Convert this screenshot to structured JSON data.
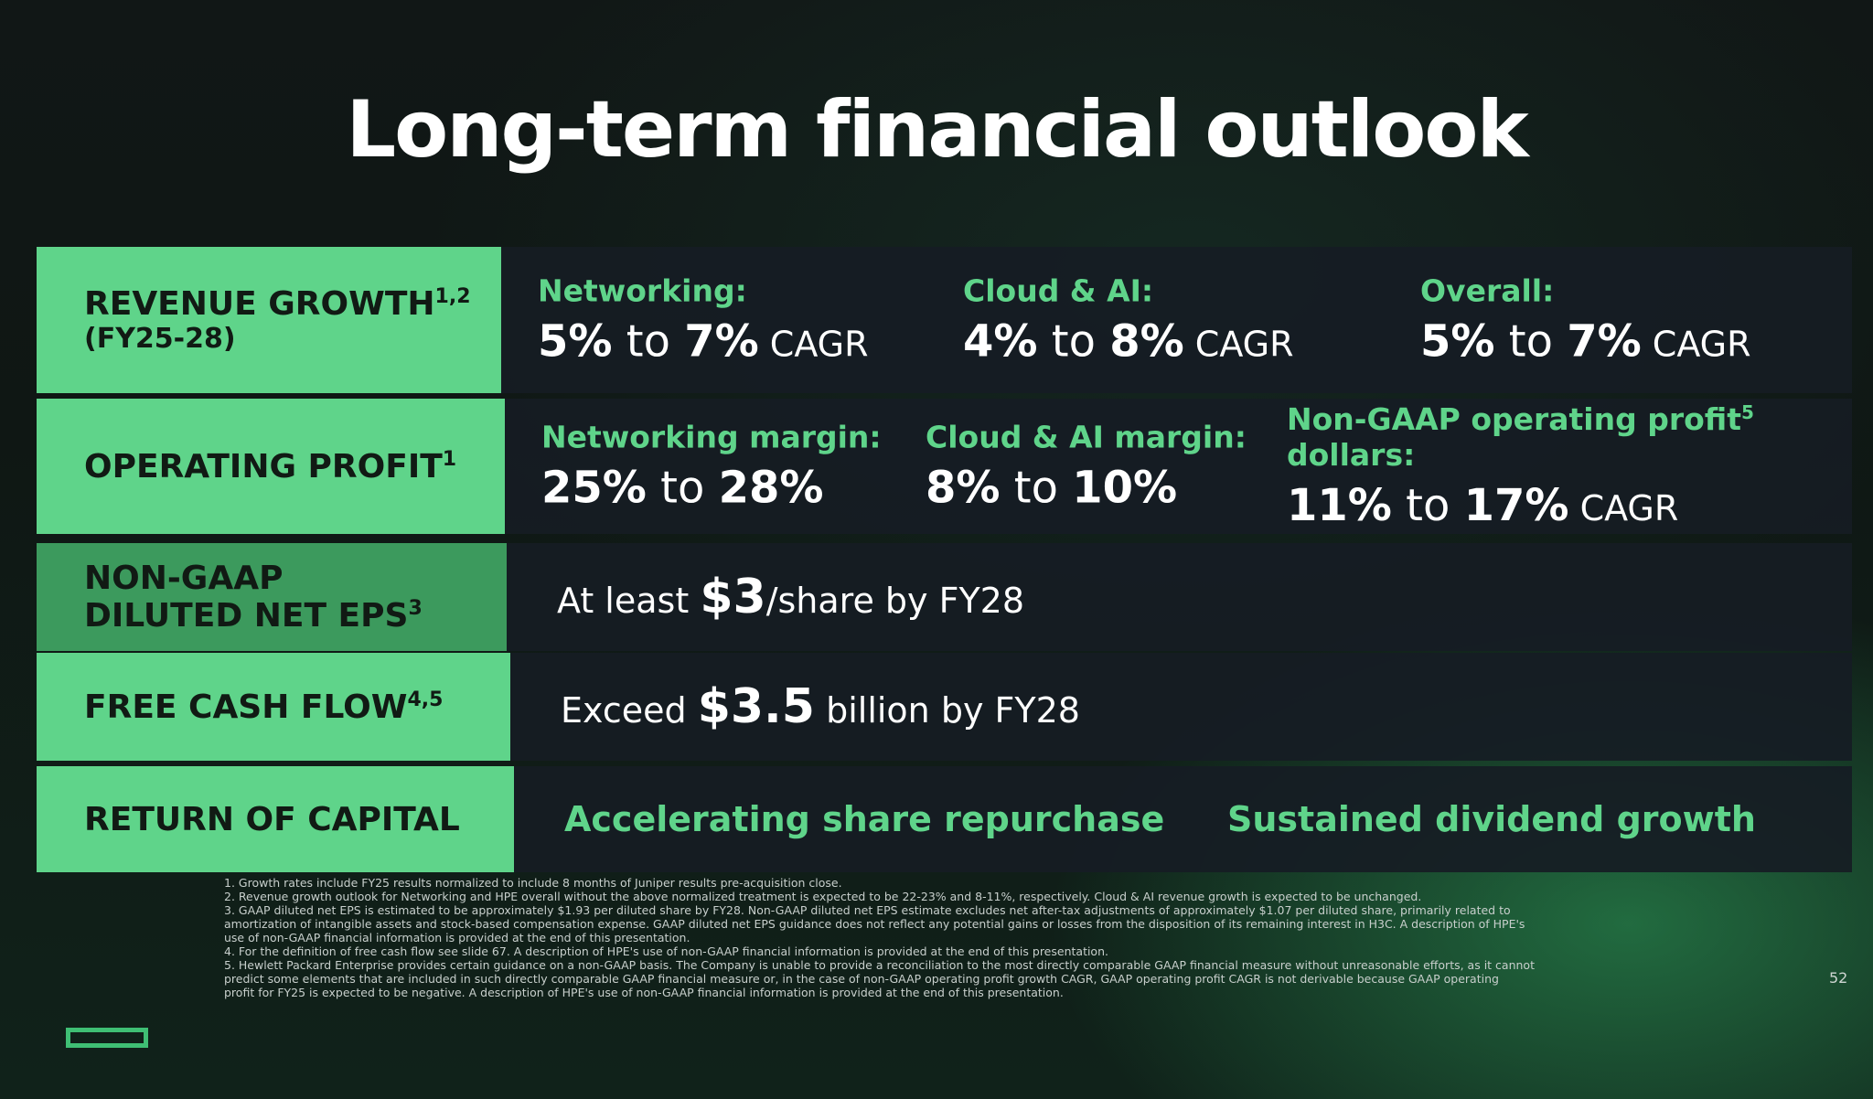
{
  "title": "Long-term financial outlook",
  "rows": {
    "revenue": {
      "label": "REVENUE GROWTH",
      "label_sup": "1,2",
      "label_sub": "(FY25-28)",
      "cols": [
        {
          "head": "Networking:",
          "low": "5%",
          "to": " to ",
          "high": "7%",
          "suffix": " CAGR"
        },
        {
          "head": "Cloud & AI:",
          "low": "4%",
          "to": " to ",
          "high": "8%",
          "suffix": " CAGR"
        },
        {
          "head": "Overall:",
          "low": "5%",
          "to": " to ",
          "high": "7%",
          "suffix": " CAGR"
        }
      ]
    },
    "operating": {
      "label": "OPERATING PROFIT",
      "label_sup": "1",
      "cols": [
        {
          "head": "Networking margin:",
          "low": "25%",
          "to": " to ",
          "high": "28%",
          "suffix": ""
        },
        {
          "head": "Cloud & AI margin:",
          "low": "8%",
          "to": " to ",
          "high": "10%",
          "suffix": ""
        },
        {
          "head": "Non-GAAP operating profit",
          "head_sup": "5",
          "head_tail": " dollars:",
          "low": "11%",
          "to": " to ",
          "high": "17%",
          "suffix": " CAGR"
        }
      ]
    },
    "eps": {
      "label_line1": "NON-GAAP",
      "label_line2": "DILUTED NET EPS",
      "label_sup": "3",
      "prefix": "At least ",
      "value": "$3",
      "suffix": "/share by FY28"
    },
    "fcf": {
      "label": "FREE CASH FLOW",
      "label_sup": "4,5",
      "prefix": "Exceed ",
      "value": "$3.5",
      "suffix": " billion by FY28"
    },
    "capital": {
      "label": "RETURN OF CAPITAL",
      "item1": "Accelerating share repurchase",
      "item2": "Sustained dividend growth"
    }
  },
  "footnotes": [
    "1. Growth rates include FY25 results normalized to include 8 months of Juniper results pre-acquisition close.",
    "2. Revenue growth outlook for Networking and HPE overall without the above normalized treatment is expected to be 22-23% and 8-11%, respectively. Cloud & AI revenue growth is expected to be unchanged.",
    "3. GAAP diluted net EPS is estimated to be approximately $1.93 per diluted share by FY28. Non-GAAP diluted net EPS estimate excludes net after-tax adjustments of approximately $1.07 per diluted share, primarily related to",
    "   amortization of intangible assets and stock-based compensation expense. GAAP diluted net EPS guidance does not reflect any potential gains or losses from the disposition of its remaining interest in H3C. A description of HPE's",
    "   use of non-GAAP financial information is provided at the end of this presentation.",
    "4. For the definition of free cash flow see slide 67. A description of HPE's use of non-GAAP financial information is provided at the end of this presentation.",
    "5. Hewlett Packard Enterprise provides certain guidance on a non-GAAP basis. The Company is unable to provide a reconciliation to the most directly comparable GAAP financial measure without unreasonable efforts, as it cannot",
    "   predict some elements that are included in such directly comparable GAAP financial measure or, in the case of non-GAAP operating profit growth CAGR, GAAP operating profit CAGR is not derivable because GAAP operating",
    "   profit for FY25 is expected to be negative. A description of HPE's use of non-GAAP financial information is provided at the end of this presentation."
  ],
  "page_number": "52",
  "colors": {
    "accent_green": "#5fd48a",
    "accent_green_dark": "#3c9a5d",
    "row_background": "#161c24"
  }
}
